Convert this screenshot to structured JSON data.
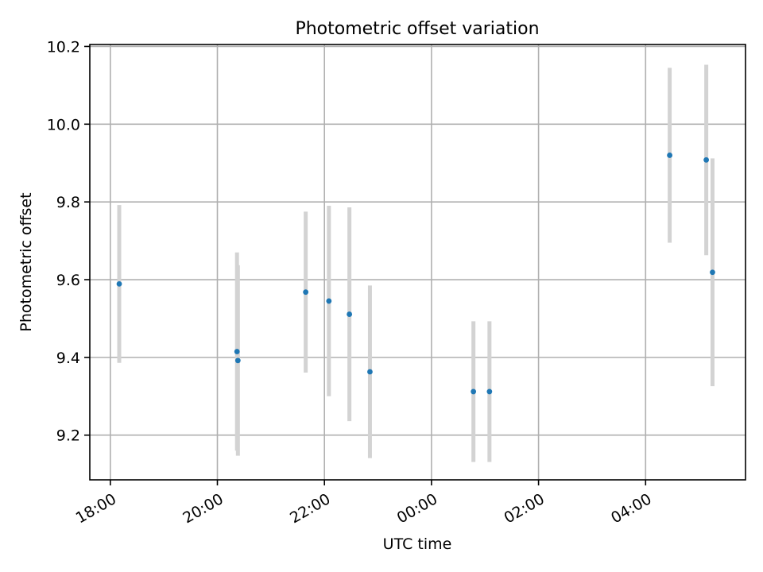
{
  "chart_data": {
    "type": "scatter",
    "title": "Photometric offset variation",
    "xlabel": "UTC time",
    "ylabel": "Photometric offset",
    "x_axis": {
      "kind": "time",
      "range": [
        "2000-01-01T17:37",
        "2000-01-02T05:52"
      ],
      "ticks": [
        {
          "t": "2000-01-01T18:00",
          "label": "18:00"
        },
        {
          "t": "2000-01-01T20:00",
          "label": "20:00"
        },
        {
          "t": "2000-01-01T22:00",
          "label": "22:00"
        },
        {
          "t": "2000-01-02T00:00",
          "label": "00:00"
        },
        {
          "t": "2000-01-02T02:00",
          "label": "02:00"
        },
        {
          "t": "2000-01-02T04:00",
          "label": "04:00"
        }
      ]
    },
    "y_axis": {
      "range": [
        9.085,
        10.205
      ],
      "ticks": [
        9.2,
        9.4,
        9.6,
        9.8,
        10.0,
        10.2
      ],
      "tick_labels": [
        "9.2",
        "9.4",
        "9.6",
        "9.8",
        "10.0",
        "10.2"
      ]
    },
    "grid": true,
    "marker_color": "#1f77b4",
    "errorbar_color": "#d3d3d3",
    "points": [
      {
        "t": "2000-01-01T18:10",
        "y": 9.589,
        "err": 0.203
      },
      {
        "t": "2000-01-01T20:22",
        "y": 9.415,
        "err": 0.255
      },
      {
        "t": "2000-01-01T20:23",
        "y": 9.392,
        "err": 0.245
      },
      {
        "t": "2000-01-01T21:39",
        "y": 9.568,
        "err": 0.207
      },
      {
        "t": "2000-01-01T22:05",
        "y": 9.545,
        "err": 0.245
      },
      {
        "t": "2000-01-01T22:28",
        "y": 9.511,
        "err": 0.275
      },
      {
        "t": "2000-01-01T22:51",
        "y": 9.363,
        "err": 0.222
      },
      {
        "t": "2000-01-02T00:47",
        "y": 9.312,
        "err": 0.181
      },
      {
        "t": "2000-01-02T01:05",
        "y": 9.312,
        "err": 0.181
      },
      {
        "t": "2000-01-02T04:27",
        "y": 9.92,
        "err": 0.225
      },
      {
        "t": "2000-01-02T05:08",
        "y": 9.908,
        "err": 0.245
      },
      {
        "t": "2000-01-02T05:15",
        "y": 9.619,
        "err": 0.293
      }
    ]
  }
}
